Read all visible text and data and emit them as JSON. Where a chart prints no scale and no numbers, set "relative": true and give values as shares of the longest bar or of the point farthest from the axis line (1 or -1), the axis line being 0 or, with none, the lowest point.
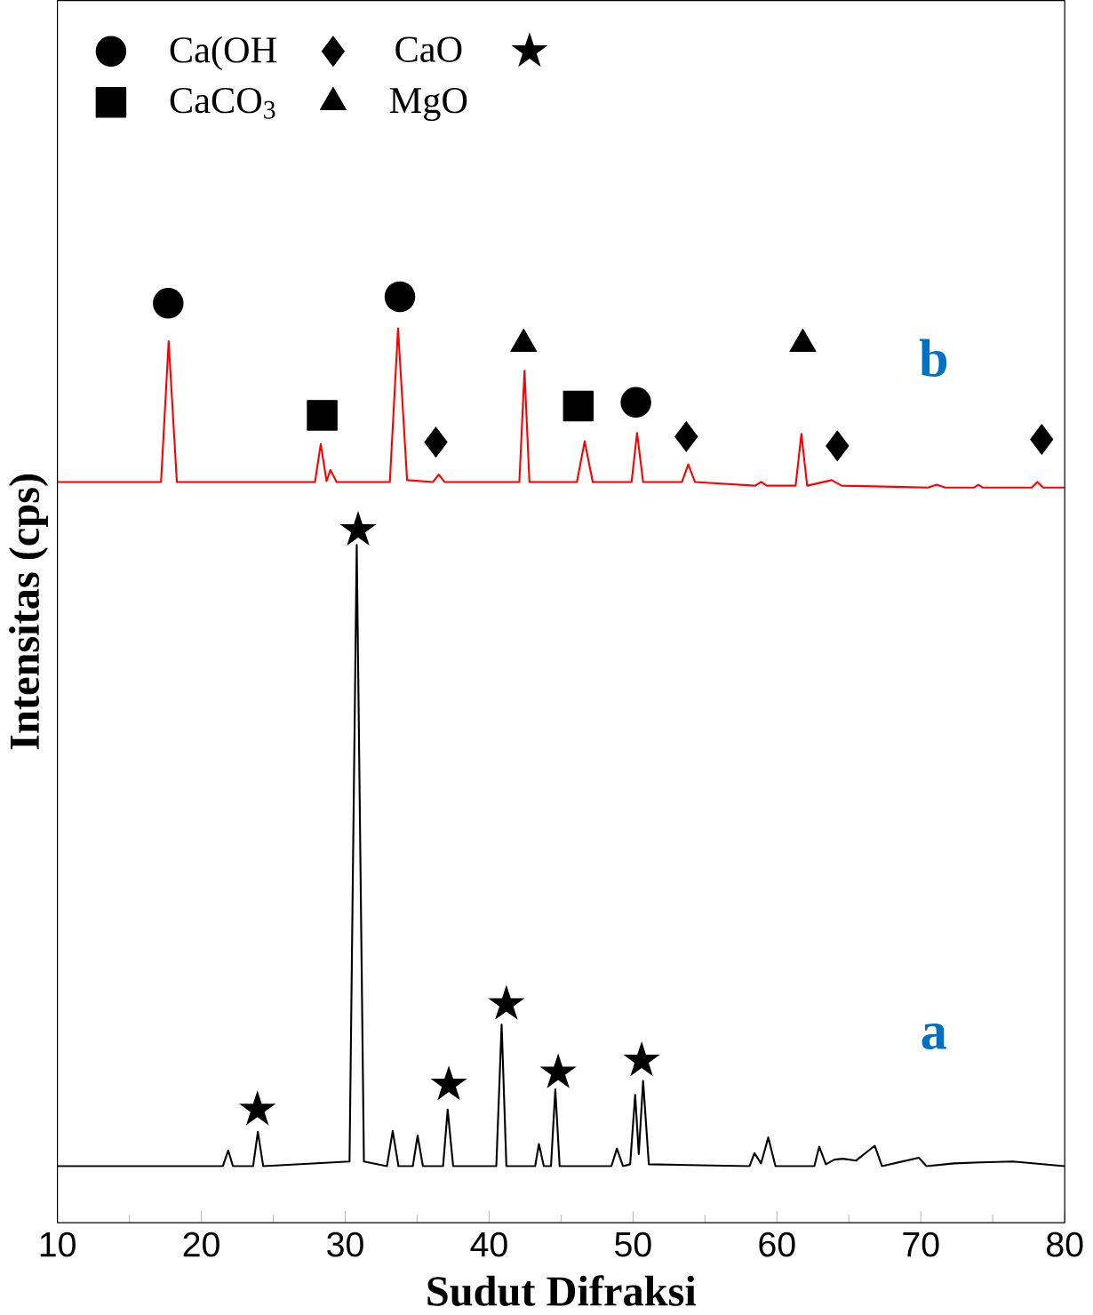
{
  "chart_data": {
    "type": "line",
    "relative": true,
    "xlabel": "Sudut Difraksi",
    "ylabel": "Intensitas (cps)",
    "xlim": [
      10,
      80
    ],
    "xticks": [
      10,
      20,
      30,
      40,
      50,
      60,
      70,
      80
    ],
    "legend": "top left",
    "series": [
      {
        "name": "a",
        "color": "#000000",
        "x": [
          10,
          21.5,
          21.87,
          22.2,
          23.6,
          23.93,
          24.3,
          30.3,
          30.8,
          31.3,
          32.9,
          33.3,
          33.7,
          34.7,
          35.03,
          35.4,
          36.8,
          37.12,
          37.5,
          40.5,
          40.87,
          41.2,
          43.2,
          43.46,
          43.8,
          44.3,
          44.6,
          44.9,
          48.5,
          48.88,
          49.3,
          49.8,
          50.15,
          50.4,
          50.7,
          51.1,
          58.1,
          58.44,
          58.9,
          59.4,
          59.9,
          62.6,
          62.94,
          63.4,
          63.99,
          64.6,
          65.5,
          66.8,
          67.3,
          69.86,
          70.4,
          72.3,
          74.1,
          76.4,
          80
        ],
        "values": [
          0.061,
          0.061,
          0.078,
          0.061,
          0.061,
          0.098,
          0.061,
          0.066,
          0.732,
          0.066,
          0.061,
          0.099,
          0.061,
          0.061,
          0.094,
          0.061,
          0.061,
          0.122,
          0.061,
          0.061,
          0.214,
          0.061,
          0.061,
          0.085,
          0.061,
          0.061,
          0.144,
          0.061,
          0.061,
          0.08,
          0.061,
          0.063,
          0.138,
          0.074,
          0.153,
          0.063,
          0.061,
          0.075,
          0.064,
          0.092,
          0.061,
          0.061,
          0.082,
          0.063,
          0.068,
          0.069,
          0.067,
          0.083,
          0.061,
          0.07,
          0.061,
          0.064,
          0.065,
          0.066,
          0.061
        ]
      },
      {
        "name": "b",
        "color": "#ff0000",
        "x": [
          10,
          17.2,
          17.73,
          18.3,
          27.9,
          28.3,
          28.7,
          28.97,
          29.4,
          33.1,
          33.67,
          34.3,
          36.1,
          36.5,
          36.9,
          42.1,
          42.46,
          42.8,
          46.1,
          46.64,
          47.2,
          49.9,
          50.28,
          50.7,
          53.4,
          53.84,
          54.3,
          58.5,
          58.9,
          59.3,
          61.3,
          61.7,
          62.1,
          63.8,
          64.5,
          70.5,
          71.1,
          71.7,
          73.7,
          74.0,
          74.3,
          77.7,
          78.1,
          78.5,
          80
        ],
        "values": [
          0.8,
          0.8,
          0.952,
          0.8,
          0.8,
          0.841,
          0.801,
          0.813,
          0.8,
          0.8,
          0.966,
          0.802,
          0.8,
          0.808,
          0.8,
          0.8,
          0.92,
          0.8,
          0.8,
          0.844,
          0.8,
          0.8,
          0.853,
          0.8,
          0.8,
          0.819,
          0.8,
          0.796,
          0.8,
          0.796,
          0.796,
          0.852,
          0.796,
          0.802,
          0.796,
          0.794,
          0.797,
          0.794,
          0.794,
          0.797,
          0.794,
          0.794,
          0.8,
          0.794,
          0.794
        ]
      },
      {
        "type": "scatter",
        "name": "Ca(OH",
        "marker": "circle",
        "color": "#000000",
        "x": [
          17.7,
          33.8,
          50.2
        ],
        "values": [
          0.993,
          1.0,
          0.886
        ]
      },
      {
        "type": "scatter",
        "name": "CaO",
        "marker": "diamond",
        "color": "#000000",
        "x": [
          36.3,
          53.7,
          64.2,
          78.4
        ],
        "values": [
          0.843,
          0.849,
          0.839,
          0.846
        ]
      },
      {
        "type": "scatter",
        "marker": "star",
        "color": "#000000",
        "x": [
          23.9,
          30.9,
          37.2,
          41.2,
          44.8,
          50.6
        ],
        "values": [
          0.122,
          0.748,
          0.149,
          0.236,
          0.162,
          0.175
        ]
      },
      {
        "type": "scatter",
        "name": "CaCO$_{3}$",
        "marker": "square",
        "color": "#000000",
        "x": [
          28.4,
          46.2
        ],
        "values": [
          0.872,
          0.882
        ]
      },
      {
        "type": "scatter",
        "name": "MgO",
        "marker": "triangle",
        "color": "#000000",
        "x": [
          42.4,
          61.8
        ],
        "values": [
          0.949,
          0.949
        ]
      }
    ]
  }
}
